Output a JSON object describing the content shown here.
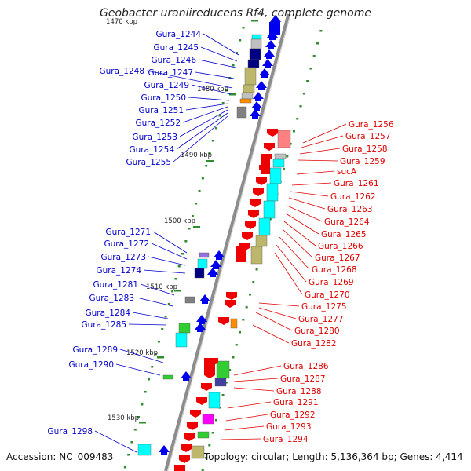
{
  "title": "Geobacter uraniireducens Rf4, complete genome",
  "footer": {
    "accession": "Accession: NC_009483",
    "topology": "Topology: circular; Length: 5,136,364 bp; Genes: 4,414"
  },
  "colors": {
    "backbone": "#8c8c8c",
    "backbone_highlight": "#d8d8d8",
    "minus_strand_label": "#0000cc",
    "plus_strand_label": "#e00000",
    "gene_reverse": "#0000ee",
    "gene_forward": "#ee0000",
    "tick_dots": "#2e8b2e",
    "cog_palette": [
      "#00ffff",
      "#000080",
      "#bdb76b",
      "#808080",
      "#ff8080",
      "#32cd32",
      "#ff8c00",
      "#ff00ff",
      "#9370db",
      "#4040a0",
      "#c0c0c0"
    ]
  },
  "scale_ticks": [
    {
      "label": "1470 kbp"
    },
    {
      "label": "1480 kbp"
    },
    {
      "label": "1490 kbp"
    },
    {
      "label": "1500 kbp"
    },
    {
      "label": "1510 kbp"
    },
    {
      "label": "1520 kbp"
    },
    {
      "label": "1530 kbp"
    }
  ],
  "gene_labels_minus": [
    "Gura_1244",
    "Gura_1245",
    "Gura_1246",
    "Gura_1247",
    "Gura_1248",
    "Gura_1249",
    "Gura_1250",
    "Gura_1251",
    "Gura_1252",
    "Gura_1253",
    "Gura_1254",
    "Gura_1255",
    "Gura_1271",
    "Gura_1272",
    "Gura_1273",
    "Gura_1274",
    "Gura_1281",
    "Gura_1283",
    "Gura_1284",
    "Gura_1285",
    "Gura_1289",
    "Gura_1290",
    "Gura_1298"
  ],
  "gene_labels_plus": [
    "Gura_1256",
    "Gura_1257",
    "Gura_1258",
    "Gura_1259",
    "sucA",
    "Gura_1261",
    "Gura_1262",
    "Gura_1263",
    "Gura_1264",
    "Gura_1265",
    "Gura_1266",
    "Gura_1267",
    "Gura_1268",
    "Gura_1269",
    "Gura_1270",
    "Gura_1275",
    "Gura_1277",
    "Gura_1280",
    "Gura_1282",
    "Gura_1286",
    "Gura_1287",
    "Gura_1288",
    "Gura_1291",
    "Gura_1292",
    "Gura_1293",
    "Gura_1294"
  ]
}
